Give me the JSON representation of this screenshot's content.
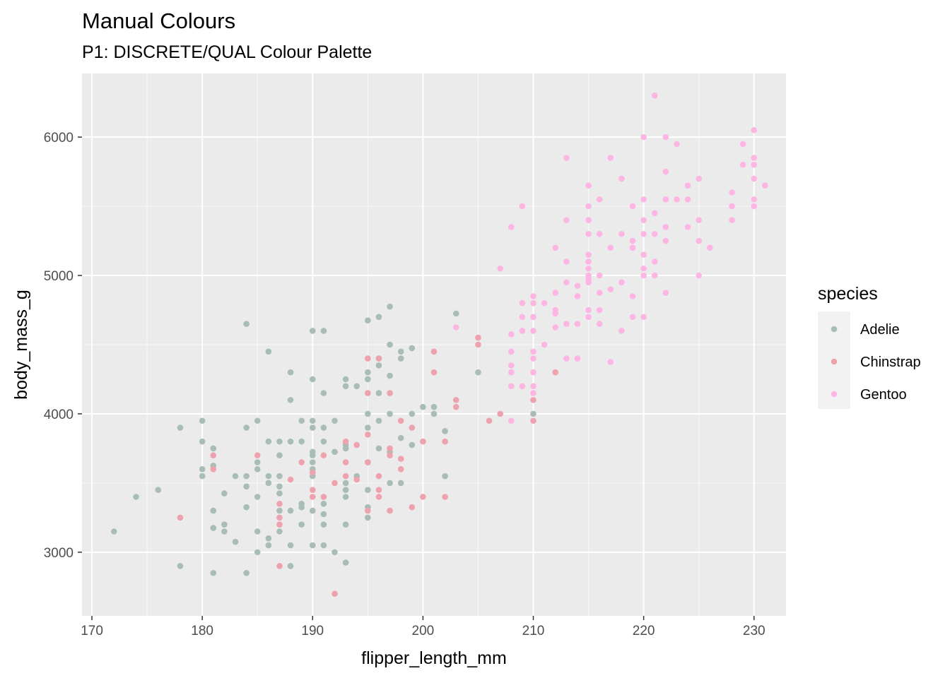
{
  "chart_data": {
    "type": "scatter",
    "title": "Manual Colours",
    "subtitle": "P1: DISCRETE/QUAL Colour Palette",
    "xlabel": "flipper_length_mm",
    "ylabel": "body_mass_g",
    "xlim": [
      169.1,
      232.9
    ],
    "ylim": [
      2540,
      6460
    ],
    "x_ticks": [
      170,
      180,
      190,
      200,
      210,
      220,
      230
    ],
    "y_ticks": [
      3000,
      4000,
      5000,
      6000
    ],
    "grid": true,
    "background": "#ebebeb",
    "legend": {
      "title": "species",
      "position": "right"
    },
    "series": [
      {
        "name": "Adelie",
        "color": "#a8bdb4",
        "points": [
          [
            172,
            3150
          ],
          [
            174,
            3400
          ],
          [
            176,
            3450
          ],
          [
            178,
            3900
          ],
          [
            178,
            2900
          ],
          [
            180,
            3950
          ],
          [
            180,
            3800
          ],
          [
            180,
            3600
          ],
          [
            180,
            3550
          ],
          [
            181,
            3750
          ],
          [
            181,
            3625
          ],
          [
            181,
            3300
          ],
          [
            181,
            3175
          ],
          [
            181,
            2850
          ],
          [
            182,
            3425
          ],
          [
            182,
            3200
          ],
          [
            182,
            3150
          ],
          [
            183,
            3550
          ],
          [
            183,
            3075
          ],
          [
            184,
            4650
          ],
          [
            184,
            3900
          ],
          [
            184,
            3550
          ],
          [
            184,
            3475
          ],
          [
            184,
            3325
          ],
          [
            184,
            2850
          ],
          [
            185,
            3950
          ],
          [
            185,
            3650
          ],
          [
            185,
            3600
          ],
          [
            185,
            3400
          ],
          [
            185,
            3150
          ],
          [
            185,
            3000
          ],
          [
            186,
            4450
          ],
          [
            186,
            3800
          ],
          [
            186,
            3550
          ],
          [
            186,
            3500
          ],
          [
            186,
            3100
          ],
          [
            186,
            3050
          ],
          [
            187,
            3800
          ],
          [
            187,
            3700
          ],
          [
            187,
            3550
          ],
          [
            187,
            3475
          ],
          [
            187,
            3425
          ],
          [
            187,
            3300
          ],
          [
            187,
            3150
          ],
          [
            188,
            4300
          ],
          [
            188,
            4100
          ],
          [
            188,
            3800
          ],
          [
            188,
            3300
          ],
          [
            188,
            3050
          ],
          [
            188,
            2900
          ],
          [
            189,
            3950
          ],
          [
            189,
            3800
          ],
          [
            189,
            3350
          ],
          [
            189,
            3325
          ],
          [
            189,
            3200
          ],
          [
            190,
            4600
          ],
          [
            190,
            4250
          ],
          [
            190,
            3950
          ],
          [
            190,
            3900
          ],
          [
            190,
            3725
          ],
          [
            190,
            3700
          ],
          [
            190,
            3650
          ],
          [
            190,
            3600
          ],
          [
            190,
            3550
          ],
          [
            190,
            3300
          ],
          [
            190,
            3050
          ],
          [
            191,
            4600
          ],
          [
            191,
            4150
          ],
          [
            191,
            3900
          ],
          [
            191,
            3800
          ],
          [
            191,
            3350
          ],
          [
            191,
            3275
          ],
          [
            191,
            3200
          ],
          [
            191,
            3050
          ],
          [
            192,
            3950
          ],
          [
            192,
            3725
          ],
          [
            192,
            3000
          ],
          [
            193,
            4250
          ],
          [
            193,
            4200
          ],
          [
            193,
            3775
          ],
          [
            193,
            3750
          ],
          [
            193,
            3500
          ],
          [
            193,
            3450
          ],
          [
            193,
            3400
          ],
          [
            193,
            3200
          ],
          [
            193,
            2925
          ],
          [
            194,
            4200
          ],
          [
            194,
            3550
          ],
          [
            195,
            4675
          ],
          [
            195,
            4300
          ],
          [
            195,
            4250
          ],
          [
            195,
            4000
          ],
          [
            195,
            3900
          ],
          [
            195,
            3650
          ],
          [
            195,
            3450
          ],
          [
            195,
            3325
          ],
          [
            195,
            3250
          ],
          [
            196,
            4700
          ],
          [
            196,
            4400
          ],
          [
            196,
            4350
          ],
          [
            196,
            4150
          ],
          [
            196,
            3950
          ],
          [
            196,
            3750
          ],
          [
            197,
            4775
          ],
          [
            197,
            4500
          ],
          [
            197,
            4275
          ],
          [
            197,
            4000
          ],
          [
            197,
            3725
          ],
          [
            197,
            3500
          ],
          [
            198,
            4450
          ],
          [
            198,
            4400
          ],
          [
            198,
            3825
          ],
          [
            198,
            3500
          ],
          [
            199,
            4475
          ],
          [
            199,
            4000
          ],
          [
            199,
            3775
          ],
          [
            200,
            4050
          ],
          [
            200,
            3800
          ],
          [
            201,
            4000
          ],
          [
            201,
            4050
          ],
          [
            202,
            3875
          ],
          [
            202,
            3550
          ],
          [
            203,
            4725
          ],
          [
            205,
            4300
          ],
          [
            210,
            4000
          ]
        ]
      },
      {
        "name": "Chinstrap",
        "color": "#eea2ae",
        "points": [
          [
            178,
            3250
          ],
          [
            181,
            3700
          ],
          [
            181,
            3600
          ],
          [
            185,
            3700
          ],
          [
            187,
            3350
          ],
          [
            187,
            3250
          ],
          [
            187,
            3200
          ],
          [
            187,
            2900
          ],
          [
            188,
            3525
          ],
          [
            189,
            3650
          ],
          [
            190,
            3575
          ],
          [
            190,
            3450
          ],
          [
            190,
            3400
          ],
          [
            191,
            3700
          ],
          [
            191,
            3400
          ],
          [
            192,
            3500
          ],
          [
            192,
            2700
          ],
          [
            193,
            3800
          ],
          [
            193,
            3650
          ],
          [
            193,
            3550
          ],
          [
            194,
            3775
          ],
          [
            194,
            3525
          ],
          [
            195,
            4400
          ],
          [
            195,
            4150
          ],
          [
            195,
            3850
          ],
          [
            195,
            3650
          ],
          [
            195,
            3300
          ],
          [
            196,
            4400
          ],
          [
            196,
            3550
          ],
          [
            196,
            3450
          ],
          [
            196,
            3400
          ],
          [
            197,
            4150
          ],
          [
            197,
            3750
          ],
          [
            197,
            3700
          ],
          [
            197,
            3300
          ],
          [
            198,
            3950
          ],
          [
            198,
            3675
          ],
          [
            198,
            3600
          ],
          [
            199,
            3900
          ],
          [
            199,
            3325
          ],
          [
            200,
            3800
          ],
          [
            200,
            3400
          ],
          [
            201,
            4450
          ],
          [
            201,
            4300
          ],
          [
            202,
            3800
          ],
          [
            202,
            3400
          ],
          [
            203,
            4100
          ],
          [
            203,
            4050
          ],
          [
            205,
            4550
          ],
          [
            205,
            4500
          ],
          [
            206,
            3950
          ],
          [
            207,
            4000
          ],
          [
            210,
            4100
          ],
          [
            210,
            3950
          ],
          [
            212,
            4300
          ]
        ]
      },
      {
        "name": "Gentoo",
        "color": "#fdb6e4",
        "points": [
          [
            203,
            4625
          ],
          [
            207,
            5050
          ],
          [
            208,
            5350
          ],
          [
            208,
            4575
          ],
          [
            208,
            4450
          ],
          [
            208,
            4350
          ],
          [
            208,
            4300
          ],
          [
            208,
            4200
          ],
          [
            208,
            3950
          ],
          [
            209,
            5500
          ],
          [
            209,
            4800
          ],
          [
            209,
            4700
          ],
          [
            209,
            4600
          ],
          [
            209,
            4200
          ],
          [
            210,
            4850
          ],
          [
            210,
            4800
          ],
          [
            210,
            4700
          ],
          [
            210,
            4600
          ],
          [
            210,
            4450
          ],
          [
            210,
            4400
          ],
          [
            210,
            4300
          ],
          [
            210,
            4200
          ],
          [
            210,
            4150
          ],
          [
            211,
            4800
          ],
          [
            211,
            4500
          ],
          [
            212,
            5200
          ],
          [
            212,
            4875
          ],
          [
            212,
            4750
          ],
          [
            212,
            4725
          ],
          [
            212,
            4625
          ],
          [
            213,
            5850
          ],
          [
            213,
            5400
          ],
          [
            213,
            5100
          ],
          [
            213,
            4950
          ],
          [
            213,
            4650
          ],
          [
            213,
            4400
          ],
          [
            214,
            4925
          ],
          [
            214,
            4850
          ],
          [
            214,
            4650
          ],
          [
            214,
            4400
          ],
          [
            215,
            5650
          ],
          [
            215,
            5500
          ],
          [
            215,
            5400
          ],
          [
            215,
            5300
          ],
          [
            215,
            5150
          ],
          [
            215,
            5100
          ],
          [
            215,
            5050
          ],
          [
            215,
            5000
          ],
          [
            215,
            4975
          ],
          [
            215,
            4950
          ],
          [
            215,
            4750
          ],
          [
            215,
            4700
          ],
          [
            216,
            5550
          ],
          [
            216,
            5300
          ],
          [
            216,
            5000
          ],
          [
            216,
            4875
          ],
          [
            216,
            4750
          ],
          [
            216,
            4650
          ],
          [
            217,
            5850
          ],
          [
            217,
            5200
          ],
          [
            217,
            4900
          ],
          [
            217,
            4375
          ],
          [
            218,
            5700
          ],
          [
            218,
            5300
          ],
          [
            218,
            4950
          ],
          [
            218,
            4600
          ],
          [
            219,
            5500
          ],
          [
            219,
            5250
          ],
          [
            219,
            5200
          ],
          [
            219,
            4850
          ],
          [
            219,
            4700
          ],
          [
            220,
            6000
          ],
          [
            220,
            5550
          ],
          [
            220,
            5400
          ],
          [
            220,
            5300
          ],
          [
            220,
            5150
          ],
          [
            220,
            5050
          ],
          [
            220,
            5000
          ],
          [
            220,
            4700
          ],
          [
            221,
            6300
          ],
          [
            221,
            5450
          ],
          [
            221,
            5300
          ],
          [
            221,
            5100
          ],
          [
            221,
            5000
          ],
          [
            222,
            6000
          ],
          [
            222,
            5750
          ],
          [
            222,
            5550
          ],
          [
            222,
            5350
          ],
          [
            222,
            5250
          ],
          [
            222,
            4875
          ],
          [
            223,
            5950
          ],
          [
            223,
            5550
          ],
          [
            224,
            5650
          ],
          [
            224,
            5550
          ],
          [
            224,
            5350
          ],
          [
            225,
            5700
          ],
          [
            225,
            5400
          ],
          [
            225,
            5250
          ],
          [
            225,
            5000
          ],
          [
            226,
            5200
          ],
          [
            228,
            5600
          ],
          [
            228,
            5500
          ],
          [
            228,
            5400
          ],
          [
            229,
            5950
          ],
          [
            229,
            5800
          ],
          [
            230,
            6050
          ],
          [
            230,
            5850
          ],
          [
            230,
            5800
          ],
          [
            230,
            5700
          ],
          [
            230,
            5550
          ],
          [
            230,
            5500
          ],
          [
            231,
            5650
          ]
        ]
      }
    ]
  }
}
